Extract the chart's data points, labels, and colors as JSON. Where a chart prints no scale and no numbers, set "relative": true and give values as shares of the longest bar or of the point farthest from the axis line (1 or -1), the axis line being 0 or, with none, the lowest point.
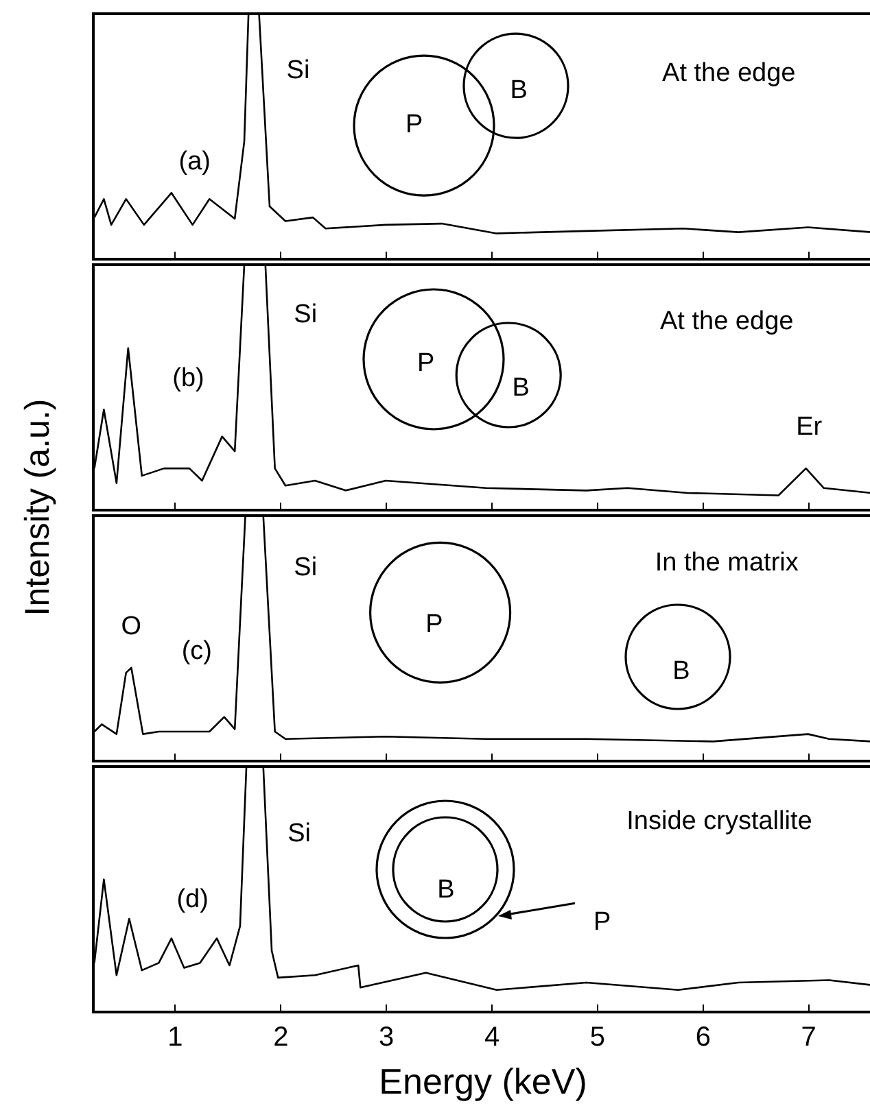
{
  "chart_data": [
    {
      "type": "line",
      "relative": true,
      "xlim": [
        0.23,
        7.6
      ],
      "xticks": [
        1,
        2,
        3,
        4,
        5,
        6,
        7
      ],
      "tick_labels": false,
      "grid": false,
      "marker": "none",
      "line_style": "solid",
      "x": [
        0.24,
        0.33,
        0.4,
        0.54,
        0.71,
        0.97,
        1.17,
        1.33,
        1.57,
        1.66,
        1.7,
        1.8,
        1.9,
        2.05,
        2.31,
        2.43,
        3.0,
        3.53,
        4.05,
        4.9,
        5.82,
        6.34,
        7.0,
        7.6
      ],
      "series": [
        {
          "color": "#000000",
          "values": [
            0.17,
            0.245,
            0.14,
            0.245,
            0.14,
            0.27,
            0.14,
            0.245,
            0.165,
            0.48,
            1,
            1,
            0.215,
            0.155,
            0.17,
            0.125,
            0.14,
            0.145,
            0.105,
            0.115,
            0.125,
            0.11,
            0.13,
            0.11
          ]
        }
      ],
      "annotations": [
        "(a)",
        "Si",
        "At the edge",
        "P",
        "B"
      ]
    },
    {
      "type": "line",
      "relative": true,
      "xlim": [
        0.23,
        7.6
      ],
      "xticks": [
        1,
        2,
        3,
        4,
        5,
        6,
        7
      ],
      "tick_labels": false,
      "grid": false,
      "marker": "none",
      "line_style": "solid",
      "ylabel": "Intensity (a.u.)",
      "x": [
        0.24,
        0.33,
        0.45,
        0.56,
        0.69,
        0.9,
        1.14,
        1.26,
        1.45,
        1.57,
        1.66,
        1.86,
        1.95,
        2.05,
        2.33,
        2.62,
        3.0,
        3.95,
        4.9,
        5.29,
        5.86,
        6.72,
        6.98,
        7.15,
        7.6
      ],
      "series": [
        {
          "color": "#000000",
          "values": [
            0.17,
            0.41,
            0.11,
            0.66,
            0.14,
            0.17,
            0.17,
            0.12,
            0.3,
            0.24,
            1,
            1,
            0.17,
            0.1,
            0.12,
            0.08,
            0.12,
            0.09,
            0.08,
            0.09,
            0.07,
            0.06,
            0.17,
            0.09,
            0.07
          ]
        }
      ],
      "annotations": [
        "(b)",
        "Si",
        "At the edge",
        "Er",
        "P",
        "B"
      ]
    },
    {
      "type": "line",
      "relative": true,
      "xlim": [
        0.23,
        7.6
      ],
      "xticks": [
        1,
        2,
        3,
        4,
        5,
        6,
        7
      ],
      "tick_labels": false,
      "grid": false,
      "marker": "none",
      "line_style": "solid",
      "x": [
        0.24,
        0.31,
        0.45,
        0.54,
        0.59,
        0.7,
        0.85,
        1.33,
        1.47,
        1.57,
        1.67,
        1.84,
        1.95,
        2.05,
        3.0,
        3.95,
        4.9,
        6.1,
        7.0,
        7.2,
        7.6
      ],
      "series": [
        {
          "color": "#000000",
          "values": [
            0.12,
            0.15,
            0.11,
            0.36,
            0.38,
            0.11,
            0.12,
            0.12,
            0.18,
            0.13,
            1,
            1,
            0.12,
            0.09,
            0.1,
            0.09,
            0.09,
            0.08,
            0.11,
            0.09,
            0.08
          ]
        }
      ],
      "annotations": [
        "O",
        "(c)",
        "Si",
        "In the matrix",
        "P",
        "B"
      ]
    },
    {
      "type": "line",
      "relative": true,
      "xlim": [
        0.23,
        7.6
      ],
      "xticks": [
        1,
        2,
        3,
        4,
        5,
        6,
        7
      ],
      "tick_labels": "x",
      "grid": false,
      "marker": "none",
      "line_style": "solid",
      "xlabel": "Energy (keV)",
      "x": [
        0.24,
        0.33,
        0.45,
        0.57,
        0.69,
        0.85,
        0.97,
        1.09,
        1.24,
        1.4,
        1.52,
        1.62,
        1.68,
        1.84,
        1.92,
        1.98,
        2.33,
        2.74,
        2.76,
        3.38,
        4.05,
        4.9,
        5.77,
        6.34,
        7.2,
        7.6
      ],
      "series": [
        {
          "color": "#000000",
          "values": [
            0.2,
            0.54,
            0.15,
            0.38,
            0.17,
            0.2,
            0.3,
            0.18,
            0.2,
            0.3,
            0.19,
            0.35,
            1,
            1,
            0.25,
            0.14,
            0.15,
            0.19,
            0.1,
            0.16,
            0.09,
            0.12,
            0.09,
            0.12,
            0.13,
            0.11
          ]
        }
      ],
      "annotations": [
        "(d)",
        "Si",
        "Inside crystallite",
        "B",
        "P"
      ]
    }
  ]
}
